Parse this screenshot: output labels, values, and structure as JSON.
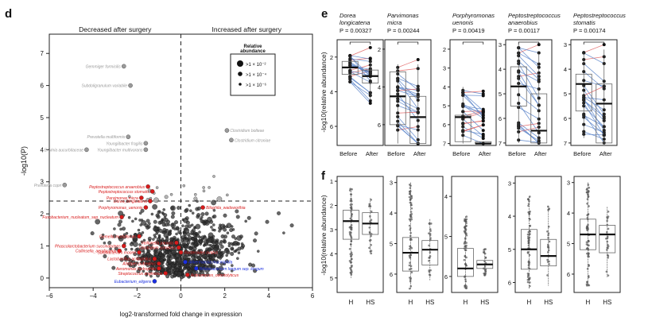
{
  "colors": {
    "up": "#d81b1b",
    "down": "#1a2ee0",
    "grey": "#9a9a9a",
    "dark": "#333333",
    "pair_blue": "#5b84c9",
    "pair_red": "#e06060",
    "median_green": "#3aa34a"
  },
  "chart_data": [
    {
      "type": "scatter",
      "panel_label": "d",
      "title_left": "Decreased after surgery",
      "title_right": "Increased after surgery",
      "xlabel": "log2-transformed fold change in expression",
      "ylabel": "-log10(P)",
      "xlim": [
        -6,
        6
      ],
      "ylim": [
        -0.3,
        7.6
      ],
      "xticks": [
        -6,
        -4,
        -2,
        0,
        2,
        4,
        6
      ],
      "yticks": [
        0,
        1,
        2,
        3,
        4,
        5,
        6,
        7
      ],
      "threshold_y": 2.4,
      "legend": {
        "title": "Relative abundance",
        "entries": [
          ">1 × 10⁻²",
          ">1 × 10⁻⁴",
          ">1 × 10⁻⁶"
        ]
      },
      "labeled_points": [
        {
          "label": "Gemmiger formicilis",
          "x": -2.6,
          "y": 6.6,
          "color": "grey"
        },
        {
          "label": "Subdoligranulum variabile",
          "x": -2.3,
          "y": 6.0,
          "color": "grey"
        },
        {
          "label": "Prevotella multiformis",
          "x": -2.4,
          "y": 4.4,
          "color": "grey"
        },
        {
          "label": "Youngiibacter fragilis",
          "x": -1.6,
          "y": 4.2,
          "color": "grey"
        },
        {
          "label": "Youngiibacter multivorans",
          "x": -1.6,
          "y": 4.0,
          "color": "grey"
        },
        {
          "label": "Erwinia aucurbitaceae",
          "x": -4.3,
          "y": 4.0,
          "color": "grey"
        },
        {
          "label": "Prevotella copri",
          "x": -5.3,
          "y": 2.9,
          "color": "grey"
        },
        {
          "label": "Clostridium bolteae",
          "x": 2.1,
          "y": 4.6,
          "color": "grey"
        },
        {
          "label": "Clostridium citroniae",
          "x": 2.3,
          "y": 4.3,
          "color": "grey"
        },
        {
          "label": "Peptostreptococcus anaerobius",
          "x": -1.5,
          "y": 2.85,
          "color": "up"
        },
        {
          "label": "Peptostreptococcus stomatis",
          "x": -1.3,
          "y": 2.7,
          "color": "up"
        },
        {
          "label": "Parvimonas micra",
          "x": -1.8,
          "y": 2.5,
          "color": "up"
        },
        {
          "label": "Dorea_longicatena",
          "x": -1.4,
          "y": 2.4,
          "color": "up"
        },
        {
          "label": "Porphyromonas_uenonis",
          "x": -1.6,
          "y": 2.2,
          "color": "up"
        },
        {
          "label": "Fusobacterium_nucleatum_sep_nucleatum",
          "x": -2.7,
          "y": 1.9,
          "color": "up"
        },
        {
          "label": "Bilophila_wadsworthia",
          "x": 1.0,
          "y": 2.2,
          "color": "up"
        },
        {
          "label": "Gemella morbillorum",
          "x": -1.9,
          "y": 1.3,
          "color": "up"
        },
        {
          "label": "Phascolarctobacterium succinatutens",
          "x": -2.6,
          "y": 1.0,
          "color": "up"
        },
        {
          "label": "Collinsella_aerofaciens",
          "x": -2.8,
          "y": 0.85,
          "color": "up"
        },
        {
          "label": "Solobacterium moorei",
          "x": -1.9,
          "y": 0.8,
          "color": "up"
        },
        {
          "label": "Lactobacillus acidophilus",
          "x": -1.2,
          "y": 0.6,
          "color": "up"
        },
        {
          "label": "Alistipes putredinis",
          "x": -1.0,
          "y": 0.45,
          "color": "up"
        },
        {
          "label": "Aeromonas hydrophila",
          "x": -1.0,
          "y": 0.3,
          "color": "up"
        },
        {
          "label": "Streptococcus anginosus",
          "x": -0.7,
          "y": 0.15,
          "color": "up"
        },
        {
          "label": "Eubacterium_eligens",
          "x": -1.2,
          "y": -0.1,
          "color": "down"
        },
        {
          "label": "Veillonella parvula",
          "x": -0.2,
          "y": 1.1,
          "color": "up"
        },
        {
          "label": "Clostridium scindens",
          "x": -0.1,
          "y": 0.95,
          "color": "up"
        },
        {
          "label": "Bacteroides ovatus",
          "x": 0.0,
          "y": 0.8,
          "color": "up"
        },
        {
          "label": "Akkermansia muciniphila",
          "x": 0.2,
          "y": 0.5,
          "color": "down"
        },
        {
          "label": "Bifidobacterium longum sep. longum",
          "x": 0.7,
          "y": 0.3,
          "color": "down"
        },
        {
          "label": "Actinomyces_odontolyticus",
          "x": 0.3,
          "y": 0.1,
          "color": "up"
        }
      ]
    },
    {
      "type": "box",
      "panel_label": "e",
      "ylabel": "-log10(relative abundance)",
      "categories": [
        "Before",
        "After"
      ],
      "subplots": [
        {
          "taxon": "Dorea longicatena",
          "p": "P = 0.00327",
          "ylim": [
            1,
            7.1
          ],
          "yticks": [
            2,
            4,
            6
          ],
          "before": {
            "q1": 2.25,
            "median": 2.6,
            "q3": 3.0,
            "lo": 1.9,
            "hi": 3.5
          },
          "after": {
            "q1": 2.75,
            "median": 3.1,
            "q3": 3.5,
            "lo": 2.2,
            "hi": 4.5
          },
          "median_color": "dark"
        },
        {
          "taxon": "Parvimonas micra",
          "p": "P = 0.00244",
          "ylim": [
            1.5,
            7.1
          ],
          "yticks": [
            2,
            4,
            6
          ],
          "before": {
            "q1": 3.2,
            "median": 4.5,
            "q3": 6.0,
            "lo": 2.8,
            "hi": 7.0
          },
          "after": {
            "q1": 4.5,
            "median": 5.6,
            "q3": 7.0,
            "lo": 2.8,
            "hi": 7.0
          },
          "median_color": "dark"
        },
        {
          "taxon": "Porphyromonas uenonis",
          "p": "P = 0.00419",
          "ylim": [
            1.5,
            7.1
          ],
          "yticks": [
            2,
            3,
            4,
            5,
            6,
            7
          ],
          "before": {
            "q1": 5.5,
            "median": 5.6,
            "q3": 6.9,
            "lo": 4.0,
            "hi": 7.0
          },
          "after": {
            "q1": 6.9,
            "median": 7.0,
            "q3": 7.0,
            "lo": 6.9,
            "hi": 7.0
          },
          "median_color": "dark"
        },
        {
          "taxon": "Peptostreptococcus anaerobius",
          "p": "P = 0.00117",
          "ylim": [
            2.8,
            7.1
          ],
          "yticks": [
            3,
            4,
            5,
            6,
            7
          ],
          "before": {
            "q1": 3.9,
            "median": 4.7,
            "q3": 5.5,
            "lo": 3.0,
            "hi": 7.0
          },
          "after": {
            "q1": 5.0,
            "median": 6.5,
            "q3": 7.0,
            "lo": 3.3,
            "hi": 7.0
          },
          "median_color": "dark"
        },
        {
          "taxon": "Peptostreptococcus stomatis",
          "p": "P = 0.00174",
          "ylim": [
            2.8,
            7.1
          ],
          "yticks": [
            3,
            4,
            5,
            6,
            7
          ],
          "before": {
            "q1": 4.2,
            "median": 4.6,
            "q3": 5.7,
            "lo": 3.3,
            "hi": 6.8
          },
          "after": {
            "q1": 4.6,
            "median": 5.4,
            "q3": 7.0,
            "lo": 3.2,
            "hi": 7.0
          },
          "median_color": "dark"
        }
      ]
    },
    {
      "type": "box",
      "panel_label": "f",
      "ylabel": "-log10(relative abundance)",
      "categories": [
        "H",
        "HS"
      ],
      "subplots": [
        {
          "ylim": [
            0.8,
            5.6
          ],
          "yticks": [
            1,
            2,
            3,
            4,
            5
          ],
          "H": {
            "q1": 2.2,
            "median": 2.65,
            "q3": 3.4,
            "lo": 1.3,
            "hi": 5.0
          },
          "HS": {
            "q1": 2.3,
            "median": 2.75,
            "q3": 3.2,
            "lo": 1.7,
            "hi": 4.0
          }
        },
        {
          "ylim": [
            2.8,
            6.6
          ],
          "yticks": [
            3,
            4,
            5,
            6
          ],
          "H": {
            "q1": 4.8,
            "median": 5.3,
            "q3": 5.9,
            "lo": 3.0,
            "hi": 6.5
          },
          "HS": {
            "q1": 4.9,
            "median": 5.2,
            "q3": 5.7,
            "lo": 4.2,
            "hi": 6.2
          }
        },
        {
          "ylim": [
            3.5,
            6.4
          ],
          "yticks": [
            4,
            5,
            6
          ],
          "H": {
            "q1": 5.3,
            "median": 5.8,
            "q3": 6.0,
            "lo": 4.5,
            "hi": 6.3
          },
          "HS": {
            "q1": 5.6,
            "median": 5.7,
            "q3": 5.8,
            "lo": 5.3,
            "hi": 6.0
          }
        },
        {
          "ylim": [
            2.8,
            6.3
          ],
          "yticks": [
            3,
            4,
            5,
            6
          ],
          "H": {
            "q1": 4.4,
            "median": 5.0,
            "q3": 5.6,
            "lo": 3.4,
            "hi": 6.2
          },
          "HS": {
            "q1": 4.7,
            "median": 5.2,
            "q3": 5.5,
            "lo": 3.7,
            "hi": 6.1
          }
        },
        {
          "ylim": [
            2.8,
            6.6
          ],
          "yticks": [
            3,
            4,
            5,
            6
          ],
          "H": {
            "q1": 4.2,
            "median": 4.7,
            "q3": 5.2,
            "lo": 3.0,
            "hi": 6.4
          },
          "HS": {
            "q1": 4.4,
            "median": 4.7,
            "q3": 5.3,
            "lo": 3.8,
            "hi": 6.1
          }
        }
      ]
    }
  ]
}
